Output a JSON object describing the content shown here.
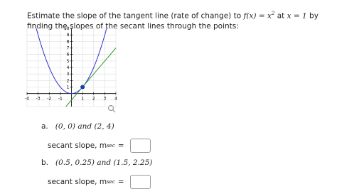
{
  "intro_before": "Estimate the slope of the tangent line (rate of change) to",
  "f_expr": "f(x) = x",
  "exponent": "2",
  "at": "at",
  "x_expr": "x = 1",
  "intro_after": "by finding the slopes of the secant lines through the points:",
  "graph": {
    "xlim": [
      -4,
      4
    ],
    "ylim": [
      -2,
      10
    ],
    "xticks": [
      -4,
      -3,
      -2,
      -1,
      1,
      2,
      3,
      4
    ],
    "yticks": [
      1,
      2,
      3,
      4,
      5,
      6,
      7,
      8,
      9,
      10
    ],
    "point": [
      1,
      1
    ]
  },
  "parts": [
    {
      "label": "a.",
      "points": "(0, 0) and (2, 4)",
      "prompt": "secant slope, m",
      "subscript": "sec",
      "equals": "="
    },
    {
      "label": "b.",
      "points": "(0.5, 0.25) and (1.5, 2.25)",
      "prompt": "secant slope, m",
      "subscript": "sec",
      "equals": "="
    }
  ]
}
